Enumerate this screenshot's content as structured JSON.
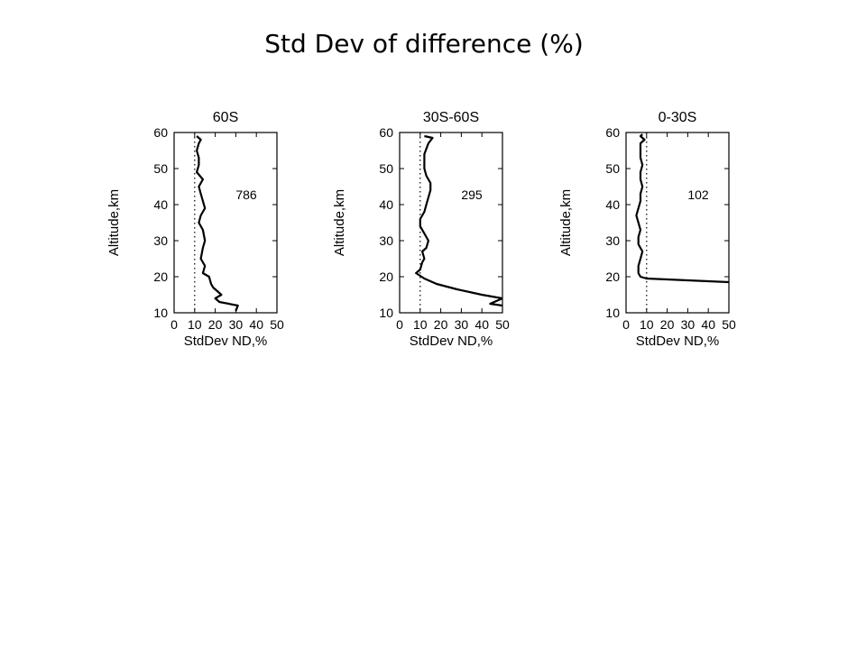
{
  "slide_title": "Std Dev of difference (%)",
  "chart_data": [
    {
      "type": "line",
      "title": "60S",
      "xlabel": "StdDev ND,%",
      "ylabel": "Altitude,km",
      "xlim": [
        0,
        50
      ],
      "ylim": [
        10,
        60
      ],
      "xticks": [
        "0",
        "10",
        "20",
        "30",
        "40",
        "50"
      ],
      "yticks": [
        "10",
        "20",
        "30",
        "40",
        "50",
        "60"
      ],
      "annotation": "786",
      "reference_line": {
        "x": 10,
        "style": "dotted"
      },
      "series": [
        {
          "x": [
            30,
            31,
            22,
            20,
            23,
            21,
            19,
            18,
            17,
            14,
            15,
            13,
            14,
            15,
            14,
            12,
            13,
            15,
            14,
            13,
            12,
            14,
            11,
            12,
            12,
            11,
            12,
            13,
            11
          ],
          "y": [
            10.5,
            12,
            13,
            14,
            15,
            16,
            17,
            18,
            20,
            21,
            23,
            25,
            28,
            30,
            33,
            35,
            37,
            39,
            41,
            43,
            45,
            47,
            49,
            51,
            53,
            55,
            57,
            58,
            59
          ]
        }
      ]
    },
    {
      "type": "line",
      "title": "30S-60S",
      "xlabel": "StdDev ND,%",
      "ylabel": "Altitude,km",
      "xlim": [
        0,
        50
      ],
      "ylim": [
        10,
        60
      ],
      "xticks": [
        "0",
        "10",
        "20",
        "30",
        "40",
        "50"
      ],
      "yticks": [
        "10",
        "20",
        "30",
        "40",
        "50",
        "60"
      ],
      "annotation": "295",
      "reference_line": {
        "x": 10,
        "style": "dotted"
      },
      "series": [
        {
          "x": [
            50,
            44,
            50,
            40,
            28,
            18,
            12,
            8,
            10,
            11,
            12,
            11,
            13,
            14,
            12,
            10,
            10,
            12,
            13,
            14,
            15,
            15,
            13,
            12,
            12,
            14,
            16,
            12
          ],
          "y": [
            12,
            12.5,
            14,
            15,
            16.5,
            18,
            19.5,
            21,
            22,
            24,
            25,
            27,
            28,
            30,
            32,
            34,
            36,
            38,
            40,
            42,
            44,
            46,
            48,
            50,
            54,
            57,
            58.5,
            59
          ]
        }
      ]
    },
    {
      "type": "line",
      "title": "0-30S",
      "xlabel": "StdDev ND,%",
      "ylabel": "Altitude,km",
      "xlim": [
        0,
        50
      ],
      "ylim": [
        10,
        60
      ],
      "xticks": [
        "0",
        "10",
        "20",
        "30",
        "40",
        "50"
      ],
      "yticks": [
        "10",
        "20",
        "30",
        "40",
        "50",
        "60"
      ],
      "annotation": "102",
      "reference_line": {
        "x": 10,
        "style": "dotted"
      },
      "series": [
        {
          "x": [
            50,
            30,
            10,
            7,
            6,
            6,
            7,
            8,
            6,
            6,
            7,
            6,
            5,
            6,
            7,
            7,
            8,
            7,
            7,
            8,
            7,
            7,
            7,
            9,
            7,
            8
          ],
          "y": [
            18.5,
            19,
            19.5,
            20,
            21,
            23,
            25,
            27,
            29,
            31,
            33,
            35,
            37,
            39,
            41,
            43,
            45,
            47,
            49,
            51,
            53,
            55,
            57,
            58,
            59,
            59.5
          ]
        }
      ]
    }
  ]
}
